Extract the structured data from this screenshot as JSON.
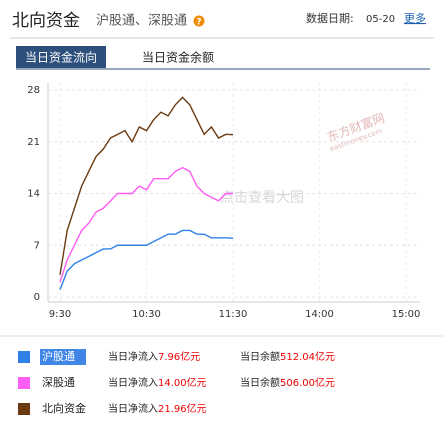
{
  "header": {
    "title": "北向资金",
    "subtitle": "沪股通、深股通",
    "date_label": "数据日期:",
    "date": "05-20",
    "more": "更多"
  },
  "tabs": [
    "当日资金流向",
    "当日资金余额"
  ],
  "watermark": [
    "东方财富网",
    "eastmoney.com",
    "点击查看大图"
  ],
  "chart_data": {
    "type": "line",
    "x": [
      0,
      5,
      10,
      15,
      20,
      25,
      30,
      35,
      40,
      45,
      50,
      55,
      60,
      65,
      70,
      75,
      80,
      85,
      90,
      95,
      100,
      105,
      110,
      115,
      120
    ],
    "xlim": [
      0,
      240
    ],
    "xticks": [
      {
        "value": 0,
        "label": "9:30"
      },
      {
        "value": 60,
        "label": "10:30"
      },
      {
        "value": 120,
        "label": "11:30"
      },
      {
        "value": 180,
        "label": "14:00"
      },
      {
        "value": 240,
        "label": "15:00"
      }
    ],
    "ylim": [
      0,
      28
    ],
    "yticks": [
      0,
      7,
      14,
      21,
      28
    ],
    "grid": true,
    "series": [
      {
        "name": "沪股通",
        "color": "#2f80e8",
        "values": [
          1,
          3.5,
          4.5,
          5,
          5.5,
          6,
          6.5,
          6.5,
          7,
          7,
          7,
          7,
          7,
          7.5,
          8,
          8.5,
          8.5,
          9,
          9,
          8.5,
          8.5,
          8,
          8,
          8,
          7.96
        ]
      },
      {
        "name": "深股通",
        "color": "#ff5cf4",
        "values": [
          2,
          5,
          7,
          9,
          10,
          11.5,
          12,
          13,
          14,
          14,
          14,
          15,
          14.5,
          16,
          16,
          16,
          17,
          17.5,
          17,
          15,
          14,
          13.5,
          13,
          14,
          14
        ]
      },
      {
        "name": "北向资金",
        "color": "#6b3a10",
        "values": [
          3,
          9,
          12,
          15,
          17,
          19,
          20,
          21.5,
          22,
          22.5,
          21,
          23,
          22.5,
          24,
          25,
          24.5,
          26,
          27,
          26,
          24,
          22,
          23,
          21.5,
          22,
          21.96
        ]
      }
    ]
  },
  "legend": [
    {
      "net_label": "当日净流入",
      "net": "7.96",
      "net_unit": "亿元",
      "bal_label": "当日余额",
      "bal": "512.04",
      "bal_unit": "亿元"
    },
    {
      "net_label": "当日净流入",
      "net": "14.00",
      "net_unit": "亿元",
      "bal_label": "当日余额",
      "bal": "506.00",
      "bal_unit": "亿元"
    },
    {
      "net_label": "当日净流入",
      "net": "21.96",
      "net_unit": "亿元",
      "bal_label": "当日余额",
      "bal": "",
      "bal_unit": ""
    }
  ]
}
